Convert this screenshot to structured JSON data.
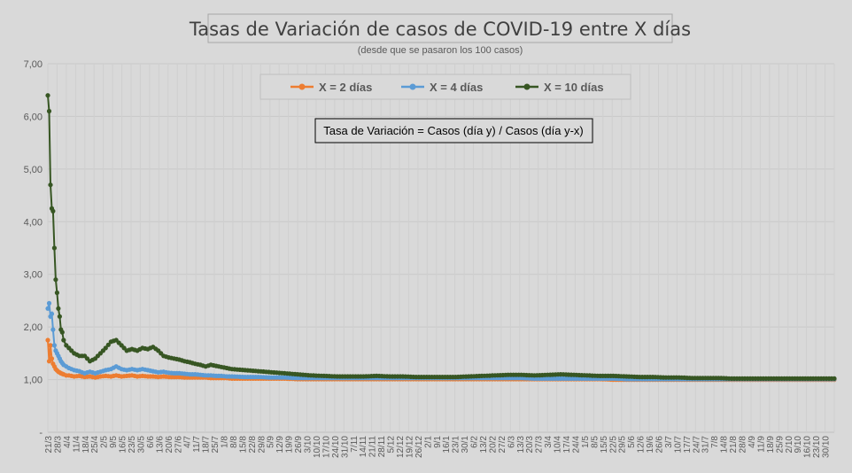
{
  "chart_data": {
    "type": "line",
    "title": "Tasas de Variación de casos de COVID-19 entre X días",
    "subtitle": "(desde que se pasaron los 100 casos)",
    "annotation": "Tasa de Variación = Casos (día y) / Casos (día y-x)",
    "ylim": [
      0,
      7
    ],
    "y_tick_labels": [
      "-",
      "1,00",
      "2,00",
      "3,00",
      "4,00",
      "5,00",
      "6,00",
      "7,00"
    ],
    "grid": true,
    "legend_position": "top-center",
    "x_tick_labels": [
      "21/3",
      "28/3",
      "4/4",
      "11/4",
      "18/4",
      "25/4",
      "2/5",
      "9/5",
      "16/5",
      "23/5",
      "30/5",
      "6/6",
      "13/6",
      "20/6",
      "27/6",
      "4/7",
      "11/7",
      "18/7",
      "25/7",
      "1/8",
      "8/8",
      "15/8",
      "22/8",
      "29/8",
      "5/9",
      "12/9",
      "19/9",
      "26/9",
      "3/10",
      "10/10",
      "17/10",
      "24/10",
      "31/10",
      "7/11",
      "14/11",
      "21/11",
      "28/11",
      "5/12",
      "12/12",
      "19/12",
      "26/12",
      "2/1",
      "9/1",
      "16/1",
      "23/1",
      "30/1",
      "6/2",
      "13/2",
      "20/2",
      "27/2",
      "6/3",
      "13/3",
      "20/3",
      "27/3",
      "3/4",
      "10/4",
      "17/4",
      "24/4",
      "1/5",
      "8/5",
      "15/5",
      "22/5",
      "29/5",
      "5/6",
      "12/6",
      "19/6",
      "26/6",
      "3/7",
      "10/7",
      "17/7",
      "24/7",
      "31/7",
      "7/8",
      "14/8",
      "21/8",
      "28/8",
      "4/9",
      "11/9",
      "18/9",
      "25/9",
      "2/10",
      "9/10",
      "16/10",
      "23/10",
      "30/10"
    ],
    "series": [
      {
        "name": "X = 2 días",
        "color": "#ed7d31",
        "points": [
          [
            0,
            1.75
          ],
          [
            1,
            1.35
          ],
          [
            2,
            1.65
          ],
          [
            3,
            1.4
          ],
          [
            4,
            1.3
          ],
          [
            5,
            1.25
          ],
          [
            6,
            1.2
          ],
          [
            8,
            1.15
          ],
          [
            10,
            1.12
          ],
          [
            12,
            1.1
          ],
          [
            14,
            1.08
          ],
          [
            16,
            1.08
          ],
          [
            20,
            1.06
          ],
          [
            24,
            1.07
          ],
          [
            28,
            1.05
          ],
          [
            32,
            1.06
          ],
          [
            36,
            1.04
          ],
          [
            40,
            1.06
          ],
          [
            44,
            1.07
          ],
          [
            48,
            1.06
          ],
          [
            52,
            1.08
          ],
          [
            56,
            1.06
          ],
          [
            60,
            1.07
          ],
          [
            64,
            1.08
          ],
          [
            68,
            1.06
          ],
          [
            72,
            1.07
          ],
          [
            76,
            1.06
          ],
          [
            80,
            1.06
          ],
          [
            84,
            1.05
          ],
          [
            88,
            1.06
          ],
          [
            92,
            1.05
          ],
          [
            96,
            1.05
          ],
          [
            100,
            1.05
          ],
          [
            104,
            1.04
          ],
          [
            108,
            1.04
          ],
          [
            112,
            1.04
          ],
          [
            116,
            1.04
          ],
          [
            120,
            1.04
          ],
          [
            124,
            1.03
          ],
          [
            128,
            1.03
          ],
          [
            132,
            1.03
          ],
          [
            136,
            1.03
          ],
          [
            140,
            1.02
          ],
          [
            150,
            1.02
          ],
          [
            160,
            1.02
          ],
          [
            170,
            1.02
          ],
          [
            180,
            1.02
          ],
          [
            190,
            1.01
          ],
          [
            200,
            1.01
          ],
          [
            210,
            1.01
          ],
          [
            220,
            1.01
          ],
          [
            230,
            1.01
          ],
          [
            240,
            1.01
          ],
          [
            250,
            1.01
          ],
          [
            260,
            1.01
          ],
          [
            270,
            1.01
          ],
          [
            280,
            1.01
          ],
          [
            290,
            1.01
          ],
          [
            300,
            1.01
          ],
          [
            310,
            1.01
          ],
          [
            320,
            1.01
          ],
          [
            330,
            1.01
          ],
          [
            340,
            1.01
          ],
          [
            350,
            1.01
          ],
          [
            360,
            1.01
          ],
          [
            370,
            1.01
          ],
          [
            380,
            1.01
          ],
          [
            390,
            1.01
          ],
          [
            400,
            1.01
          ],
          [
            410,
            1.01
          ],
          [
            420,
            1.01
          ],
          [
            430,
            1.0
          ],
          [
            440,
            1.0
          ],
          [
            450,
            1.0
          ],
          [
            460,
            1.0
          ],
          [
            470,
            1.0
          ],
          [
            480,
            1.0
          ],
          [
            490,
            1.0
          ],
          [
            500,
            1.0
          ],
          [
            510,
            1.0
          ],
          [
            520,
            1.0
          ],
          [
            530,
            1.0
          ],
          [
            540,
            1.0
          ],
          [
            550,
            1.0
          ],
          [
            560,
            1.0
          ],
          [
            570,
            1.0
          ],
          [
            580,
            1.0
          ],
          [
            590,
            1.0
          ],
          [
            598,
            1.0
          ]
        ]
      },
      {
        "name": "X = 4 días",
        "color": "#5b9bd5",
        "points": [
          [
            0,
            2.35
          ],
          [
            1,
            2.45
          ],
          [
            2,
            2.2
          ],
          [
            3,
            2.25
          ],
          [
            4,
            1.95
          ],
          [
            5,
            1.65
          ],
          [
            6,
            1.55
          ],
          [
            8,
            1.45
          ],
          [
            10,
            1.35
          ],
          [
            12,
            1.28
          ],
          [
            14,
            1.25
          ],
          [
            16,
            1.22
          ],
          [
            20,
            1.18
          ],
          [
            24,
            1.16
          ],
          [
            28,
            1.12
          ],
          [
            32,
            1.15
          ],
          [
            36,
            1.12
          ],
          [
            40,
            1.15
          ],
          [
            44,
            1.18
          ],
          [
            48,
            1.2
          ],
          [
            52,
            1.25
          ],
          [
            56,
            1.2
          ],
          [
            60,
            1.18
          ],
          [
            64,
            1.2
          ],
          [
            68,
            1.18
          ],
          [
            72,
            1.2
          ],
          [
            76,
            1.18
          ],
          [
            80,
            1.16
          ],
          [
            84,
            1.14
          ],
          [
            88,
            1.15
          ],
          [
            92,
            1.13
          ],
          [
            96,
            1.12
          ],
          [
            100,
            1.12
          ],
          [
            104,
            1.11
          ],
          [
            108,
            1.1
          ],
          [
            112,
            1.1
          ],
          [
            116,
            1.09
          ],
          [
            120,
            1.08
          ],
          [
            124,
            1.08
          ],
          [
            128,
            1.07
          ],
          [
            132,
            1.07
          ],
          [
            136,
            1.06
          ],
          [
            140,
            1.06
          ],
          [
            150,
            1.05
          ],
          [
            160,
            1.05
          ],
          [
            170,
            1.04
          ],
          [
            180,
            1.04
          ],
          [
            190,
            1.03
          ],
          [
            200,
            1.03
          ],
          [
            210,
            1.03
          ],
          [
            220,
            1.03
          ],
          [
            230,
            1.03
          ],
          [
            240,
            1.03
          ],
          [
            250,
            1.03
          ],
          [
            260,
            1.03
          ],
          [
            270,
            1.03
          ],
          [
            280,
            1.03
          ],
          [
            290,
            1.03
          ],
          [
            300,
            1.03
          ],
          [
            310,
            1.03
          ],
          [
            320,
            1.03
          ],
          [
            330,
            1.03
          ],
          [
            340,
            1.03
          ],
          [
            350,
            1.03
          ],
          [
            360,
            1.03
          ],
          [
            370,
            1.02
          ],
          [
            380,
            1.02
          ],
          [
            390,
            1.02
          ],
          [
            400,
            1.02
          ],
          [
            410,
            1.02
          ],
          [
            420,
            1.02
          ],
          [
            430,
            1.02
          ],
          [
            440,
            1.01
          ],
          [
            450,
            1.01
          ],
          [
            460,
            1.01
          ],
          [
            470,
            1.01
          ],
          [
            480,
            1.01
          ],
          [
            490,
            1.01
          ],
          [
            500,
            1.01
          ],
          [
            510,
            1.01
          ],
          [
            520,
            1.01
          ],
          [
            530,
            1.01
          ],
          [
            540,
            1.01
          ],
          [
            550,
            1.01
          ],
          [
            560,
            1.01
          ],
          [
            570,
            1.01
          ],
          [
            580,
            1.01
          ],
          [
            590,
            1.01
          ],
          [
            598,
            1.01
          ]
        ]
      },
      {
        "name": "X = 10 días",
        "color": "#375623",
        "points": [
          [
            0,
            6.4
          ],
          [
            1,
            6.1
          ],
          [
            2,
            4.7
          ],
          [
            3,
            4.25
          ],
          [
            4,
            4.2
          ],
          [
            5,
            3.5
          ],
          [
            6,
            2.9
          ],
          [
            7,
            2.65
          ],
          [
            8,
            2.35
          ],
          [
            9,
            2.2
          ],
          [
            10,
            1.95
          ],
          [
            11,
            1.9
          ],
          [
            12,
            1.75
          ],
          [
            14,
            1.65
          ],
          [
            16,
            1.6
          ],
          [
            18,
            1.55
          ],
          [
            20,
            1.5
          ],
          [
            24,
            1.45
          ],
          [
            28,
            1.45
          ],
          [
            32,
            1.35
          ],
          [
            36,
            1.4
          ],
          [
            40,
            1.5
          ],
          [
            44,
            1.6
          ],
          [
            48,
            1.72
          ],
          [
            52,
            1.75
          ],
          [
            56,
            1.65
          ],
          [
            60,
            1.55
          ],
          [
            64,
            1.58
          ],
          [
            68,
            1.55
          ],
          [
            72,
            1.6
          ],
          [
            76,
            1.58
          ],
          [
            80,
            1.62
          ],
          [
            84,
            1.55
          ],
          [
            88,
            1.45
          ],
          [
            92,
            1.42
          ],
          [
            96,
            1.4
          ],
          [
            100,
            1.38
          ],
          [
            104,
            1.35
          ],
          [
            108,
            1.33
          ],
          [
            112,
            1.3
          ],
          [
            116,
            1.28
          ],
          [
            120,
            1.25
          ],
          [
            124,
            1.28
          ],
          [
            128,
            1.26
          ],
          [
            132,
            1.24
          ],
          [
            136,
            1.22
          ],
          [
            140,
            1.2
          ],
          [
            150,
            1.18
          ],
          [
            160,
            1.16
          ],
          [
            170,
            1.14
          ],
          [
            180,
            1.12
          ],
          [
            190,
            1.1
          ],
          [
            200,
            1.08
          ],
          [
            210,
            1.07
          ],
          [
            220,
            1.06
          ],
          [
            230,
            1.06
          ],
          [
            240,
            1.06
          ],
          [
            250,
            1.07
          ],
          [
            260,
            1.06
          ],
          [
            270,
            1.06
          ],
          [
            280,
            1.05
          ],
          [
            290,
            1.05
          ],
          [
            300,
            1.05
          ],
          [
            310,
            1.05
          ],
          [
            320,
            1.06
          ],
          [
            330,
            1.07
          ],
          [
            340,
            1.08
          ],
          [
            350,
            1.09
          ],
          [
            360,
            1.09
          ],
          [
            370,
            1.08
          ],
          [
            380,
            1.09
          ],
          [
            390,
            1.1
          ],
          [
            400,
            1.09
          ],
          [
            410,
            1.08
          ],
          [
            420,
            1.07
          ],
          [
            430,
            1.07
          ],
          [
            440,
            1.06
          ],
          [
            450,
            1.05
          ],
          [
            460,
            1.05
          ],
          [
            470,
            1.04
          ],
          [
            480,
            1.04
          ],
          [
            490,
            1.03
          ],
          [
            500,
            1.03
          ],
          [
            510,
            1.03
          ],
          [
            520,
            1.02
          ],
          [
            530,
            1.02
          ],
          [
            540,
            1.02
          ],
          [
            550,
            1.02
          ],
          [
            560,
            1.02
          ],
          [
            570,
            1.02
          ],
          [
            580,
            1.02
          ],
          [
            590,
            1.02
          ],
          [
            598,
            1.02
          ]
        ]
      }
    ]
  }
}
